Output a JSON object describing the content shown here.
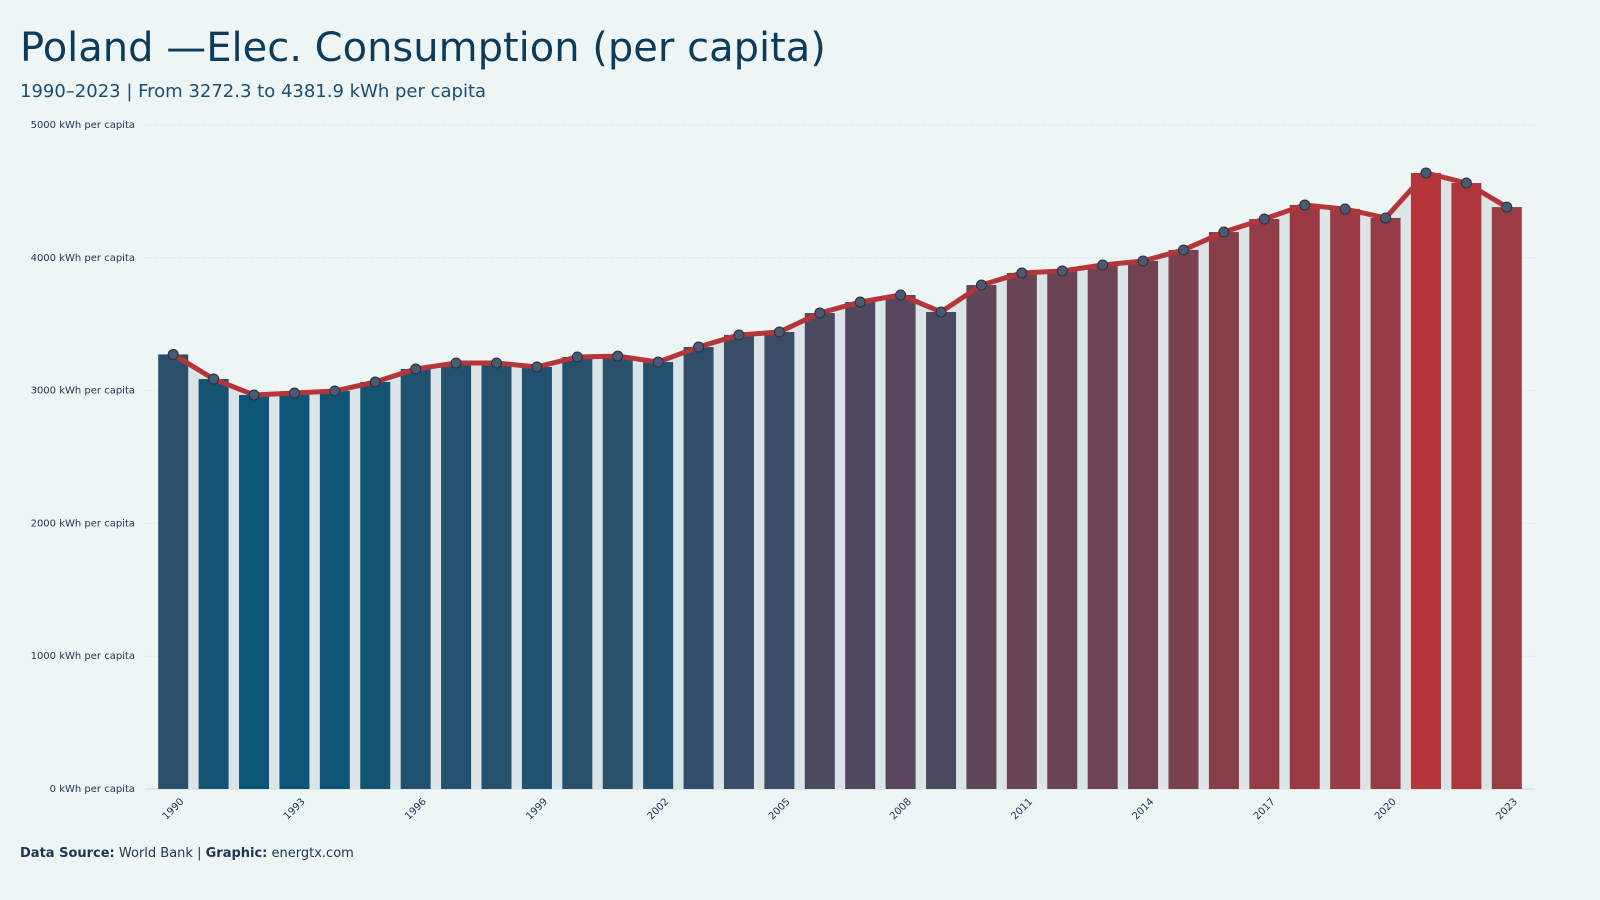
{
  "chart_data": {
    "type": "bar-line",
    "title": "Poland —Elec. Consumption (per capita)",
    "subtitle": "1990–2023 | From 3272.3 to 4381.9 kWh per capita",
    "categories": [
      "1990",
      null,
      null,
      "1993",
      null,
      null,
      "1996",
      null,
      null,
      "1999",
      null,
      null,
      "2002",
      null,
      null,
      "2005",
      null,
      null,
      "2008",
      null,
      null,
      "2011",
      null,
      null,
      "2014",
      null,
      null,
      "2017",
      null,
      null,
      "2020",
      null,
      null,
      "2023"
    ],
    "values": [
      3272.3,
      3087,
      2967,
      2982,
      2997,
      3065,
      3163,
      3208,
      3208,
      3178,
      3253,
      3260,
      3215,
      3328,
      3419,
      3441,
      3584,
      3667,
      3720,
      3592,
      3795,
      3886,
      3901,
      3946,
      3976,
      4059,
      4194,
      4292,
      4398,
      4367,
      4300,
      4639,
      4563,
      4381.9
    ],
    "color_low": "#0b5577",
    "color_high": "#b5363a",
    "line_color": "#b5363a",
    "point_color": "#4a5a74",
    "area_color": "#dbe4e7",
    "ylim": [
      0,
      5000
    ],
    "yticks": [
      {
        "value": 0,
        "label": "0 kWh per capita"
      },
      {
        "value": 1000,
        "label": "1000 kWh per capita"
      },
      {
        "value": 2000,
        "label": "2000 kWh per capita"
      },
      {
        "value": 3000,
        "label": "3000 kWh per capita"
      },
      {
        "value": 4000,
        "label": "4000 kWh per capita"
      },
      {
        "value": 5000,
        "label": "5000 kWh per capita"
      }
    ],
    "grid": true,
    "source_label": "Data Source:",
    "source": "World Bank |",
    "graphic_label": "Graphic:",
    "graphic": "energtx.com"
  }
}
